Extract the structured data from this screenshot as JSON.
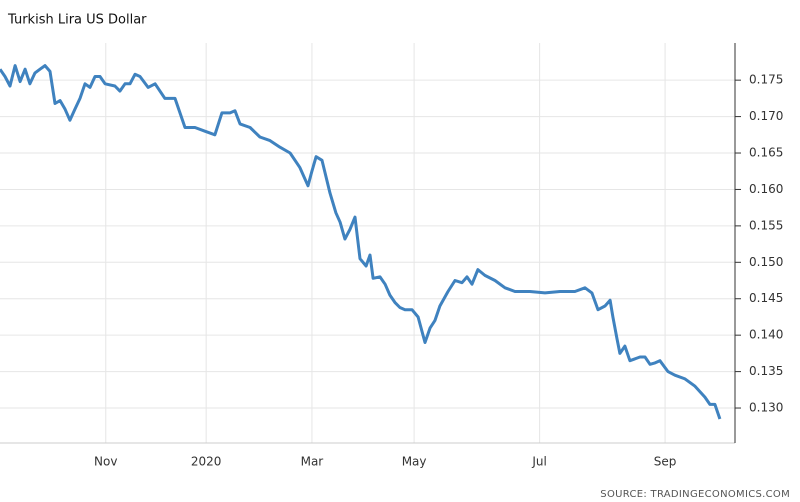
{
  "chart_data": {
    "type": "line",
    "title": "Turkish Lira US Dollar",
    "source": "SOURCE: TRADINGECONOMICS.COM",
    "grid": true,
    "y_axis_side": "right",
    "xlim": [
      -59,
      351
    ],
    "xticks": [
      {
        "value": 0,
        "label": "Nov"
      },
      {
        "value": 56,
        "label": "2020"
      },
      {
        "value": 115,
        "label": "Mar"
      },
      {
        "value": 172,
        "label": "May"
      },
      {
        "value": 242,
        "label": "Jul"
      },
      {
        "value": 312,
        "label": "Sep"
      }
    ],
    "ylim": [
      0.1252,
      0.1801
    ],
    "yticks": [
      {
        "value": 0.13,
        "label": "0.130"
      },
      {
        "value": 0.135,
        "label": "0.135"
      },
      {
        "value": 0.14,
        "label": "0.140"
      },
      {
        "value": 0.145,
        "label": "0.145"
      },
      {
        "value": 0.15,
        "label": "0.150"
      },
      {
        "value": 0.155,
        "label": "0.155"
      },
      {
        "value": 0.16,
        "label": "0.160"
      },
      {
        "value": 0.165,
        "label": "0.165"
      },
      {
        "value": 0.17,
        "label": "0.170"
      },
      {
        "value": 0.175,
        "label": "0.175"
      }
    ],
    "series": [
      {
        "name": "Turkish Lira US Dollar",
        "color": "#3f82bf",
        "x": [
          -59,
          -56.2,
          -53.4,
          -50.6,
          -47.8,
          -45,
          -42.3,
          -39.5,
          -36.7,
          -33.9,
          -31.1,
          -28.3,
          -25.5,
          -22.7,
          -20,
          -17.2,
          -14.4,
          -11.6,
          -8.8,
          -6,
          -3.2,
          -0.4,
          5.1,
          7.9,
          10.7,
          13.5,
          16.3,
          19.1,
          23.6,
          27.5,
          33,
          38.6,
          44.2,
          49.8,
          55.3,
          60.9,
          64.8,
          69.3,
          72.1,
          74.9,
          80.5,
          86,
          91.6,
          97.2,
          102.8,
          108.3,
          112.8,
          115,
          117.3,
          120.6,
          125.1,
          128.4,
          130.7,
          133.4,
          136.2,
          139,
          141.8,
          145.2,
          147.4,
          149.1,
          153,
          155.8,
          158.5,
          161.3,
          164.1,
          166.9,
          170.8,
          174.2,
          178.1,
          180.9,
          183.6,
          186.4,
          190.9,
          194.8,
          198.7,
          201.5,
          204.3,
          207.6,
          211.5,
          217.1,
          222.7,
          228.3,
          236.6,
          245,
          253.4,
          261.7,
          267.3,
          271.2,
          274.6,
          278.5,
          281.3,
          282.9,
          285.2,
          286.8,
          289.6,
          292.4,
          298,
          300.8,
          303.6,
          306.4,
          309.1,
          313.6,
          317.5,
          323.1,
          328.7,
          334.2,
          337,
          339.8,
          342.6
        ],
        "values": [
          0.1765,
          0.1755,
          0.1742,
          0.177,
          0.1748,
          0.1765,
          0.1745,
          0.176,
          0.1765,
          0.177,
          0.1762,
          0.1718,
          0.1722,
          0.171,
          0.1695,
          0.171,
          0.1725,
          0.1745,
          0.174,
          0.1755,
          0.1755,
          0.1745,
          0.1742,
          0.1735,
          0.1745,
          0.1745,
          0.1758,
          0.1755,
          0.174,
          0.1745,
          0.1725,
          0.1725,
          0.1685,
          0.1685,
          0.168,
          0.1675,
          0.1705,
          0.1705,
          0.1708,
          0.169,
          0.1685,
          0.1672,
          0.1667,
          0.1658,
          0.165,
          0.163,
          0.1605,
          0.1625,
          0.1645,
          0.164,
          0.1595,
          0.1568,
          0.1555,
          0.1532,
          0.1545,
          0.1562,
          0.1505,
          0.1495,
          0.151,
          0.1478,
          0.148,
          0.147,
          0.1455,
          0.1445,
          0.1438,
          0.1435,
          0.1435,
          0.1425,
          0.139,
          0.141,
          0.142,
          0.144,
          0.146,
          0.1475,
          0.1472,
          0.148,
          0.147,
          0.149,
          0.1482,
          0.1475,
          0.1465,
          0.146,
          0.146,
          0.1458,
          0.146,
          0.146,
          0.1465,
          0.1458,
          0.1435,
          0.144,
          0.1448,
          0.1425,
          0.1395,
          0.1375,
          0.1385,
          0.1365,
          0.137,
          0.137,
          0.136,
          0.1362,
          0.1365,
          0.135,
          0.1345,
          0.134,
          0.133,
          0.1315,
          0.1305,
          0.1305,
          0.1285
        ]
      }
    ]
  }
}
